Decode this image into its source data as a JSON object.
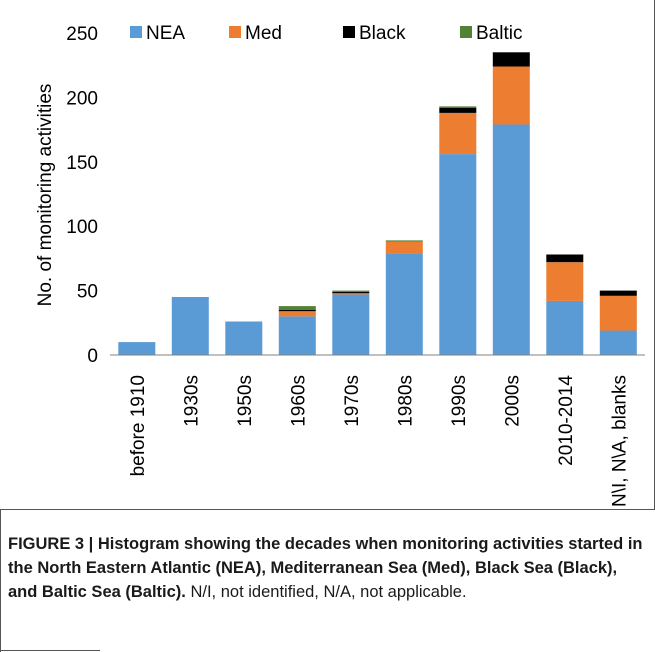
{
  "chart_data": {
    "type": "bar",
    "stacked": true,
    "categories": [
      "before 1910",
      "1930s",
      "1950s",
      "1960s",
      "1970s",
      "1980s",
      "1990s",
      "2000s",
      "2010-2014",
      "N\\I, N\\A, blanks"
    ],
    "series": [
      {
        "name": "NEA",
        "color": "#5b9bd5",
        "values": [
          10,
          45,
          26,
          30,
          47,
          79,
          156,
          179,
          42,
          19
        ]
      },
      {
        "name": "Med",
        "color": "#ed7d31",
        "values": [
          0,
          0,
          0,
          4,
          1,
          9,
          32,
          45,
          30,
          27
        ]
      },
      {
        "name": "Black",
        "color": "#000000",
        "values": [
          0,
          0,
          0,
          1,
          1,
          0,
          4,
          11,
          6,
          4
        ]
      },
      {
        "name": "Baltic",
        "color": "#548235",
        "values": [
          0,
          0,
          0,
          3,
          1,
          1,
          1,
          0,
          0,
          0
        ]
      }
    ],
    "ylabel": "No. of monitoring activities",
    "xlabel": "",
    "ylim": [
      0,
      250
    ],
    "yticks": [
      0,
      50,
      100,
      150,
      200,
      250
    ],
    "legend_position": "top",
    "grid": false
  },
  "caption": {
    "bold": "FIGURE 3 | Histogram showing the decades when monitoring activities started in the North Eastern Atlantic (NEA), Mediterranean Sea (Med), Black Sea (Black), and Baltic Sea (Baltic).",
    "normal": " N/I, not identified, N/A, not applicable."
  }
}
